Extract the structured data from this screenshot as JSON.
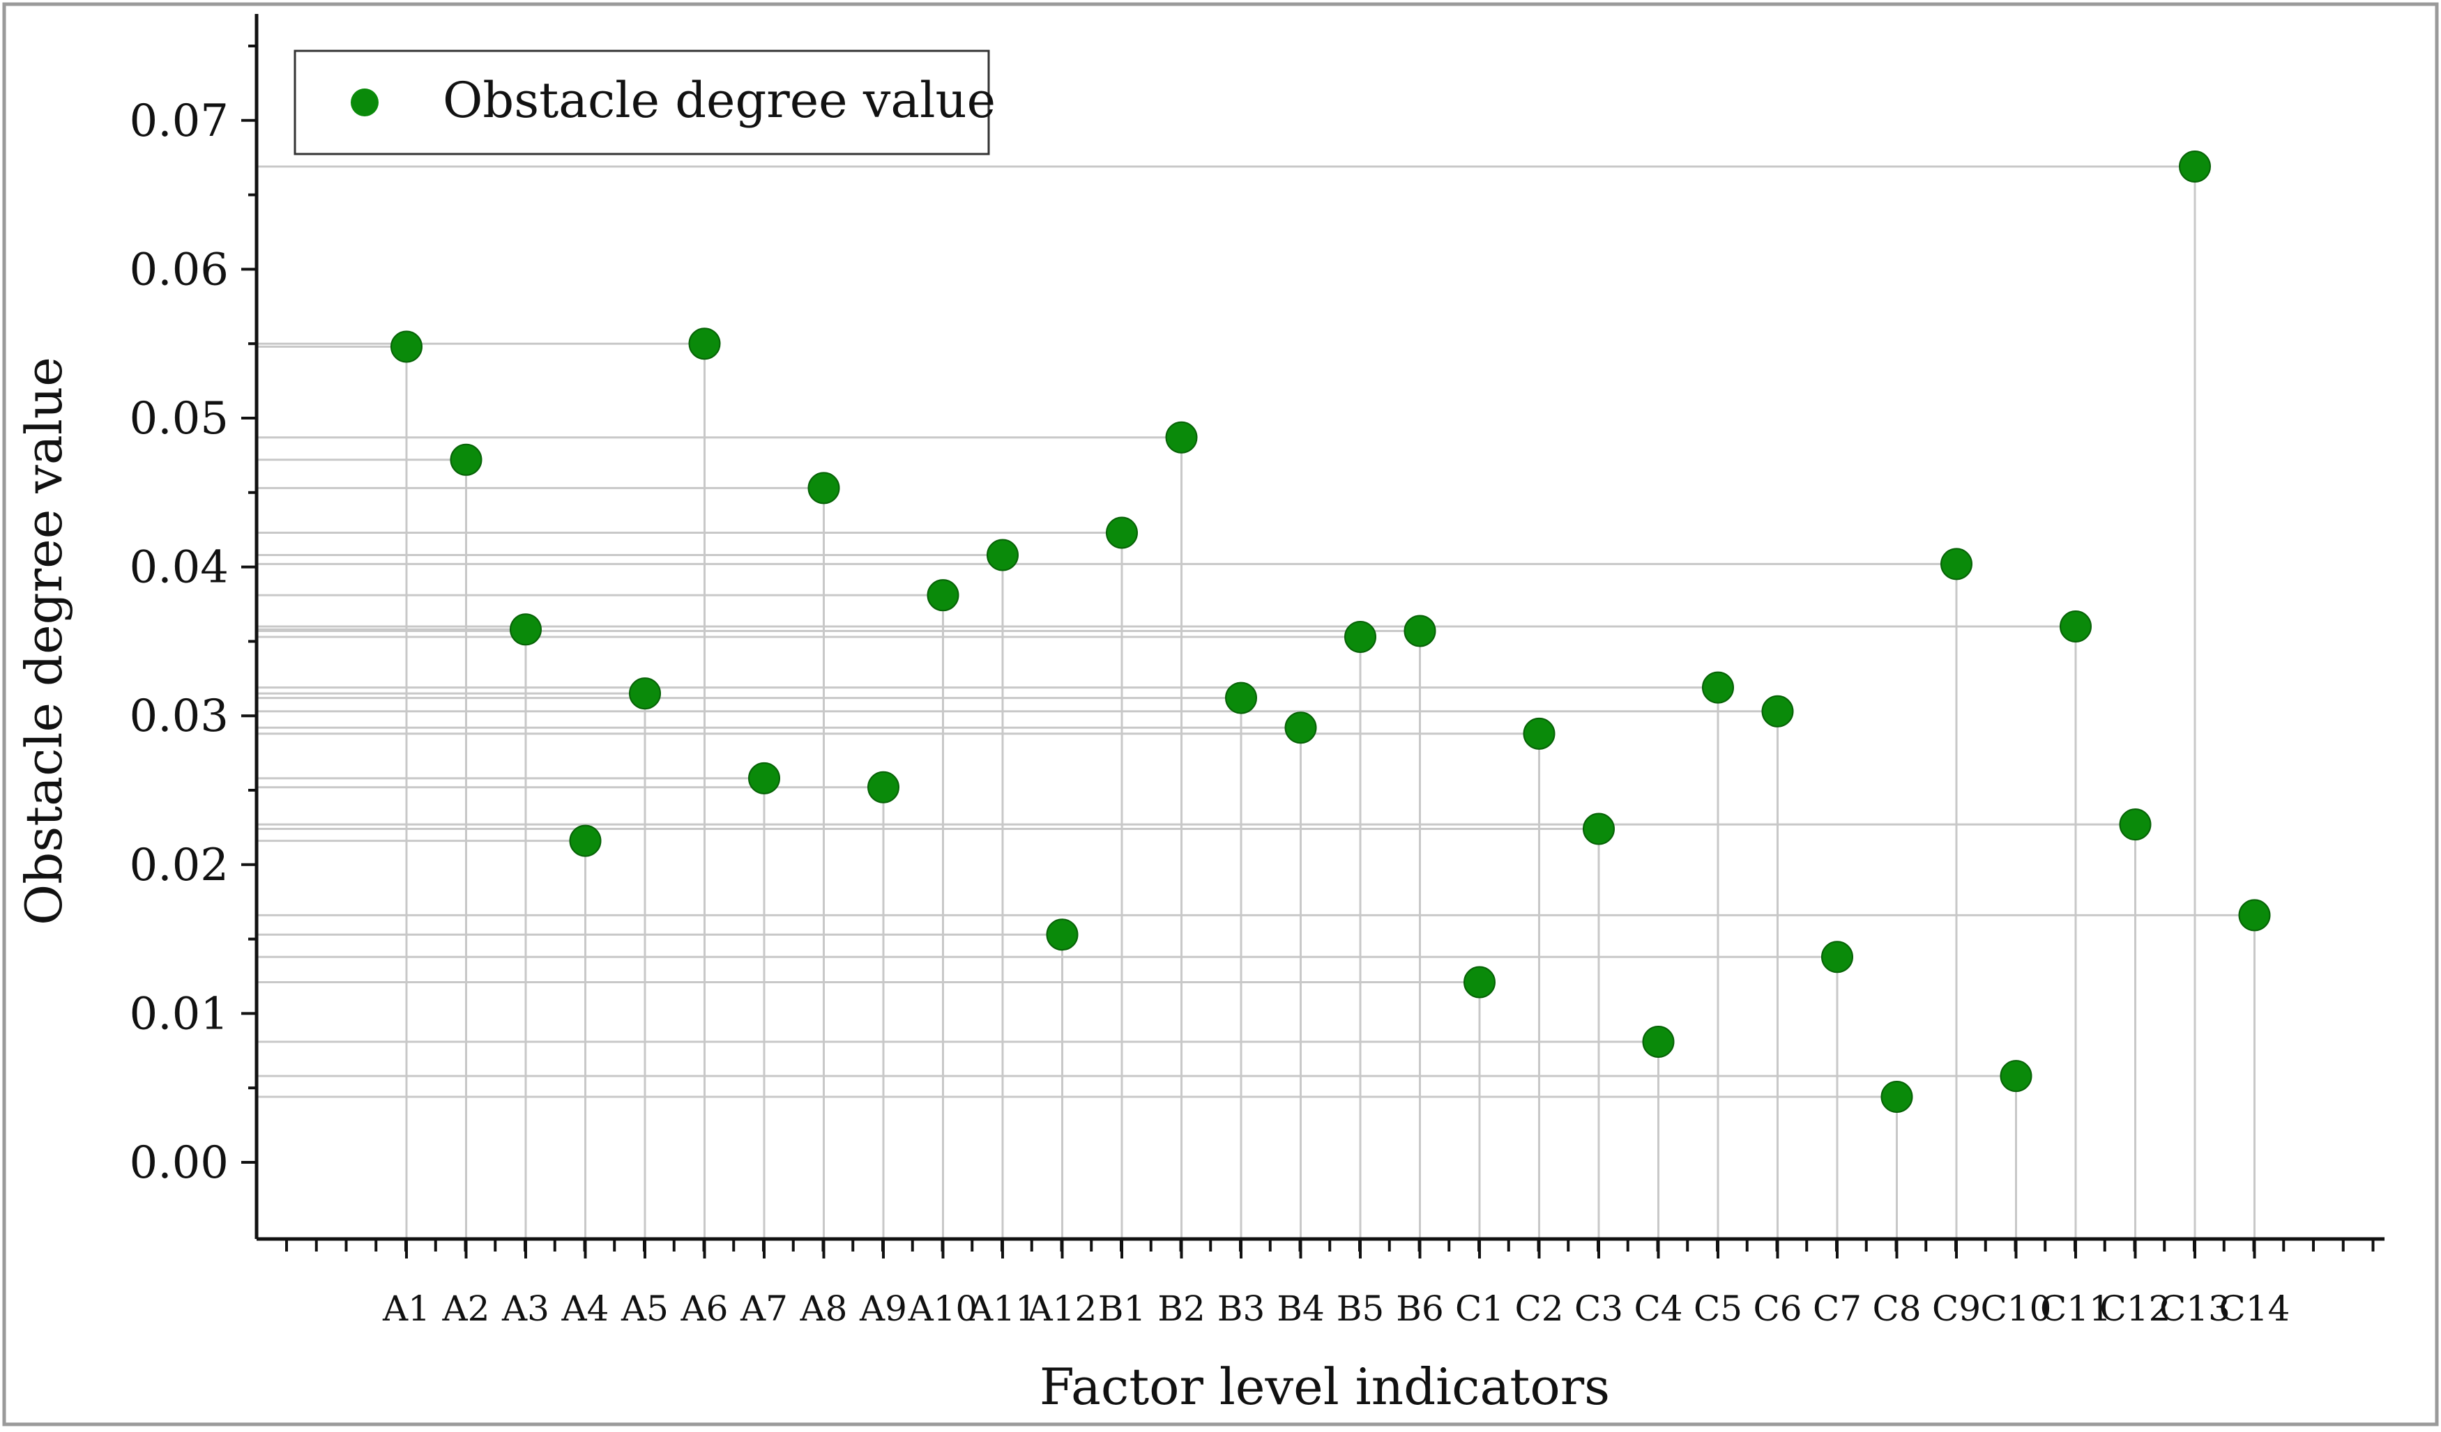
{
  "chart_data": {
    "type": "scatter",
    "title": "",
    "xlabel": "Factor level indicators",
    "ylabel": "Obstacle degree value",
    "ylim": [
      0,
      0.075
    ],
    "yticks": [
      "0.00",
      "0.01",
      "0.02",
      "0.03",
      "0.04",
      "0.05",
      "0.06",
      "0.07"
    ],
    "grid": "drop lines from each point to both axes",
    "legend": {
      "position": "top-left",
      "entries": [
        "Obstacle degree value"
      ]
    },
    "categories": [
      "A1",
      "A2",
      "A3",
      "A4",
      "A5",
      "A6",
      "A7",
      "A8",
      "A9",
      "A10",
      "A11",
      "A12",
      "B1",
      "B2",
      "B3",
      "B4",
      "B5",
      "B6",
      "C1",
      "C2",
      "C3",
      "C4",
      "C5",
      "C6",
      "C7",
      "C8",
      "C9",
      "C10",
      "C11",
      "C12",
      "C13",
      "C14"
    ],
    "series": [
      {
        "name": "Obstacle degree value",
        "color": "#0a8a0a",
        "values": [
          0.0548,
          0.0472,
          0.0358,
          0.0216,
          0.0315,
          0.055,
          0.0258,
          0.0453,
          0.0252,
          0.0381,
          0.0408,
          0.0153,
          0.0423,
          0.0487,
          0.0312,
          0.0292,
          0.0353,
          0.0357,
          0.0121,
          0.0288,
          0.0224,
          0.0081,
          0.0319,
          0.0303,
          0.0138,
          0.0044,
          0.0402,
          0.0058,
          0.036,
          0.0227,
          0.0669,
          0.0166
        ]
      }
    ]
  }
}
